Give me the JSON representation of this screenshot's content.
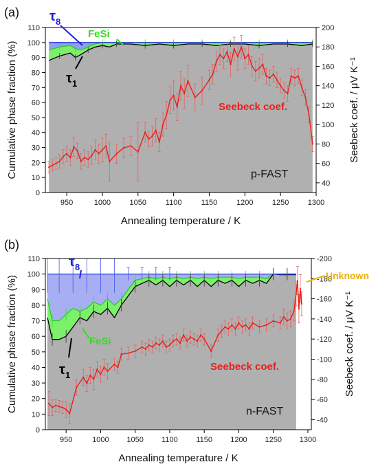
{
  "chart_data": [
    {
      "type": "area",
      "panel_label": "(a)",
      "sample_label": "p-FAST",
      "xlabel": "Annealing temperature / K",
      "ylabel_left": "Cumulative phase fraction (%)",
      "ylabel_right": "Seebeck coef. / μV K⁻¹",
      "xlim": [
        920,
        1300
      ],
      "ylim_left": [
        0,
        110
      ],
      "ylim_right": [
        30,
        200
      ],
      "right_axis_inverted": false,
      "xticks": [
        950,
        1000,
        1050,
        1100,
        1150,
        1200,
        1250,
        1300
      ],
      "yticks_left": [
        0,
        10,
        20,
        30,
        40,
        50,
        60,
        70,
        80,
        90,
        100,
        110
      ],
      "yticks_right": [
        40,
        60,
        80,
        100,
        120,
        140,
        160,
        180,
        200
      ],
      "grid": false,
      "colors": {
        "tau1": "#b0b0b0",
        "fesi": "#7cf06a",
        "tau8": "#8fa0f0",
        "unknown": "#f5c030",
        "seebeck": "#e8201c"
      },
      "annotations": [
        {
          "text": "τ8",
          "sub": "8",
          "base": "τ",
          "color": "#2020e0"
        },
        {
          "text": "FeSi",
          "color": "#33dd22"
        },
        {
          "text": "τ1",
          "sub": "1",
          "base": "τ",
          "color": "#000000"
        },
        {
          "text": "Seebeck coef.",
          "color": "#e8201c"
        }
      ],
      "series": [
        {
          "name": "τ1",
          "x": [
            925,
            940,
            955,
            962,
            970,
            980,
            990,
            1000,
            1010,
            1020,
            1040,
            1060,
            1080,
            1100,
            1120,
            1140,
            1160,
            1180,
            1200,
            1220,
            1240,
            1260,
            1280,
            1295
          ],
          "y": [
            88,
            91,
            93,
            90,
            92,
            95,
            97,
            98,
            97,
            99,
            99,
            98,
            99,
            98,
            99,
            99,
            98,
            99,
            99,
            98,
            99,
            99,
            98,
            99
          ]
        },
        {
          "name": "FeSi",
          "x": [
            925,
            940,
            955,
            962,
            970,
            980,
            990,
            1000,
            1010,
            1020,
            1040,
            1060,
            1080,
            1100,
            1120,
            1140,
            1160,
            1180,
            1200,
            1220,
            1240,
            1260,
            1280,
            1295
          ],
          "y": [
            95,
            97,
            98,
            96,
            95,
            97,
            99,
            100,
            100,
            100,
            100,
            100,
            100,
            100,
            100,
            100,
            100,
            100,
            100,
            100,
            100,
            100,
            100,
            100
          ]
        },
        {
          "name": "τ8",
          "x": [
            925,
            940,
            955,
            962,
            970,
            980,
            990,
            1000,
            1010,
            1020,
            1040,
            1060,
            1080,
            1100,
            1120,
            1140,
            1160,
            1180,
            1200,
            1220,
            1240,
            1260,
            1280,
            1295
          ],
          "y": [
            100,
            100,
            100,
            100,
            100,
            100,
            100,
            100,
            100,
            100,
            100,
            100,
            100,
            100,
            100,
            100,
            100,
            100,
            100,
            100,
            100,
            100,
            100,
            100
          ]
        },
        {
          "name": "Seebeck coef.",
          "axis": "right",
          "x": [
            925,
            930,
            935,
            940,
            945,
            950,
            955,
            960,
            965,
            970,
            975,
            980,
            985,
            990,
            995,
            1000,
            1005,
            1010,
            1020,
            1030,
            1040,
            1050,
            1060,
            1065,
            1070,
            1075,
            1080,
            1085,
            1090,
            1095,
            1100,
            1105,
            1110,
            1115,
            1120,
            1130,
            1140,
            1150,
            1155,
            1160,
            1165,
            1170,
            1175,
            1180,
            1185,
            1190,
            1195,
            1200,
            1205,
            1210,
            1215,
            1220,
            1225,
            1230,
            1235,
            1240,
            1245,
            1250,
            1255,
            1260,
            1265,
            1270,
            1275,
            1280,
            1285,
            1290,
            1295
          ],
          "y": [
            56,
            58,
            60,
            62,
            67,
            70,
            66,
            77,
            73,
            62,
            66,
            64,
            68,
            74,
            70,
            74,
            78,
            62,
            70,
            76,
            78,
            72,
            92,
            85,
            88,
            94,
            82,
            100,
            110,
            125,
            130,
            118,
            140,
            132,
            145,
            128,
            135,
            146,
            152,
            165,
            172,
            168,
            175,
            162,
            178,
            170,
            180,
            168,
            172,
            160,
            155,
            158,
            162,
            150,
            148,
            152,
            146,
            140,
            135,
            132,
            150,
            148,
            150,
            138,
            128,
            110,
            80
          ],
          "err": [
            6,
            6,
            6,
            7,
            7,
            8,
            8,
            10,
            8,
            8,
            8,
            8,
            9,
            10,
            10,
            12,
            12,
            20,
            10,
            10,
            10,
            30,
            10,
            8,
            10,
            12,
            10,
            12,
            14,
            14,
            15,
            14,
            15,
            15,
            16,
            14,
            14,
            10,
            10,
            10,
            10,
            10,
            10,
            12,
            12,
            14,
            12,
            10,
            10,
            10,
            10,
            10,
            10,
            8,
            8,
            8,
            8,
            8,
            8,
            8,
            8,
            8,
            8,
            8,
            8,
            8,
            8
          ]
        }
      ]
    },
    {
      "type": "area",
      "panel_label": "(b)",
      "sample_label": "n-FAST",
      "xlabel": "Annealing temperature / K",
      "ylabel_left": "Cumulative phase fraction (%)",
      "ylabel_right": "Seebeck coef. / μV K⁻¹",
      "xlim": [
        920,
        1305
      ],
      "ylim_left": [
        0,
        110
      ],
      "ylim_right": [
        -30,
        -200
      ],
      "right_axis_inverted": true,
      "xticks": [
        950,
        1000,
        1050,
        1100,
        1150,
        1200,
        1250,
        1300
      ],
      "yticks_left": [
        0,
        10,
        20,
        30,
        40,
        50,
        60,
        70,
        80,
        90,
        100,
        110
      ],
      "yticks_right": [
        -40,
        -60,
        -80,
        -100,
        -120,
        -140,
        -160,
        -180,
        -200
      ],
      "grid": false,
      "colors": {
        "tau1": "#b0b0b0",
        "fesi": "#7cf06a",
        "tau8": "#a8aef2",
        "unknown": "#f5b820",
        "seebeck": "#e8201c"
      },
      "annotations": [
        {
          "text": "τ8",
          "sub": "8",
          "base": "τ",
          "color": "#2020e0"
        },
        {
          "text": "Unknown",
          "color": "#f0b000"
        },
        {
          "text": "FeSi",
          "color": "#33dd22"
        },
        {
          "text": "τ1",
          "sub": "1",
          "base": "τ",
          "color": "#000000"
        },
        {
          "text": "Seebeck coef.",
          "color": "#e8201c"
        }
      ],
      "series": [
        {
          "name": "τ1",
          "x": [
            923,
            930,
            940,
            950,
            960,
            970,
            980,
            990,
            1000,
            1010,
            1020,
            1030,
            1040,
            1050,
            1060,
            1070,
            1080,
            1090,
            1100,
            1110,
            1120,
            1130,
            1140,
            1150,
            1160,
            1170,
            1180,
            1190,
            1200,
            1210,
            1220,
            1230,
            1240,
            1250,
            1260,
            1270,
            1283
          ],
          "y": [
            72,
            58,
            58,
            60,
            66,
            72,
            70,
            76,
            74,
            78,
            72,
            80,
            86,
            92,
            94,
            96,
            93,
            96,
            92,
            96,
            93,
            96,
            92,
            96,
            92,
            96,
            94,
            96,
            92,
            96,
            94,
            96,
            94,
            100,
            100,
            100,
            100
          ]
        },
        {
          "name": "FeSi",
          "x": [
            923,
            930,
            940,
            950,
            960,
            970,
            980,
            990,
            1000,
            1010,
            1020,
            1030,
            1040,
            1050,
            1060,
            1070,
            1080,
            1090,
            1100,
            1110,
            1120,
            1130,
            1140,
            1150,
            1160,
            1170,
            1180,
            1190,
            1200,
            1210,
            1220,
            1230,
            1240,
            1250,
            1260,
            1270,
            1283
          ],
          "y": [
            84,
            70,
            70,
            74,
            78,
            76,
            78,
            82,
            80,
            84,
            80,
            84,
            90,
            96,
            97,
            98,
            97,
            98,
            97,
            98,
            97,
            98,
            97,
            98,
            97,
            98,
            98,
            98,
            97,
            98,
            98,
            98,
            97,
            100,
            100,
            100,
            100
          ]
        },
        {
          "name": "τ8",
          "x": [
            923,
            930,
            940,
            950,
            960,
            970,
            980,
            990,
            1000,
            1010,
            1020,
            1030,
            1040,
            1050,
            1060,
            1070,
            1080,
            1090,
            1100,
            1110,
            1120,
            1130,
            1140,
            1150,
            1160,
            1170,
            1180,
            1190,
            1200,
            1210,
            1220,
            1230,
            1240,
            1250,
            1260,
            1270,
            1283
          ],
          "y": [
            100,
            100,
            100,
            100,
            100,
            100,
            100,
            100,
            100,
            100,
            100,
            100,
            100,
            100,
            100,
            100,
            100,
            100,
            100,
            100,
            100,
            100,
            100,
            100,
            100,
            100,
            100,
            100,
            100,
            100,
            100,
            100,
            100,
            100,
            99.5,
            99.5,
            99.5
          ]
        },
        {
          "name": "Seebeck coef.",
          "axis": "right",
          "x": [
            925,
            930,
            935,
            940,
            945,
            950,
            955,
            965,
            975,
            980,
            985,
            990,
            995,
            1000,
            1005,
            1010,
            1020,
            1025,
            1030,
            1040,
            1050,
            1060,
            1065,
            1070,
            1075,
            1080,
            1085,
            1090,
            1095,
            1100,
            1105,
            1110,
            1115,
            1120,
            1125,
            1130,
            1135,
            1140,
            1145,
            1150,
            1160,
            1170,
            1175,
            1180,
            1185,
            1190,
            1195,
            1200,
            1205,
            1210,
            1215,
            1220,
            1230,
            1240,
            1250,
            1260,
            1265,
            1270,
            1275,
            1280,
            1283,
            1285,
            1287,
            1289,
            1291
          ],
          "y": [
            -56,
            -52,
            -54,
            -53,
            -52,
            -50,
            -46,
            -72,
            -82,
            -76,
            -84,
            -80,
            -90,
            -85,
            -92,
            -88,
            -95,
            -92,
            -105,
            -106,
            -108,
            -112,
            -110,
            -114,
            -112,
            -116,
            -114,
            -118,
            -112,
            -114,
            -118,
            -120,
            -116,
            -124,
            -118,
            -122,
            -120,
            -118,
            -124,
            -120,
            -108,
            -124,
            -128,
            -132,
            -130,
            -134,
            -130,
            -136,
            -132,
            -134,
            -130,
            -136,
            -132,
            -134,
            -138,
            -136,
            -142,
            -138,
            -140,
            -148,
            -165,
            -178,
            -150,
            -170,
            -155
          ],
          "err": [
            12,
            8,
            6,
            6,
            6,
            8,
            10,
            8,
            8,
            8,
            8,
            10,
            8,
            8,
            8,
            8,
            6,
            6,
            6,
            6,
            6,
            6,
            6,
            6,
            6,
            6,
            6,
            6,
            6,
            6,
            6,
            6,
            6,
            6,
            6,
            6,
            6,
            6,
            6,
            6,
            6,
            6,
            6,
            6,
            6,
            6,
            6,
            6,
            6,
            6,
            6,
            6,
            6,
            6,
            6,
            6,
            8,
            8,
            8,
            10,
            12,
            14,
            14,
            14,
            12
          ]
        }
      ]
    }
  ]
}
